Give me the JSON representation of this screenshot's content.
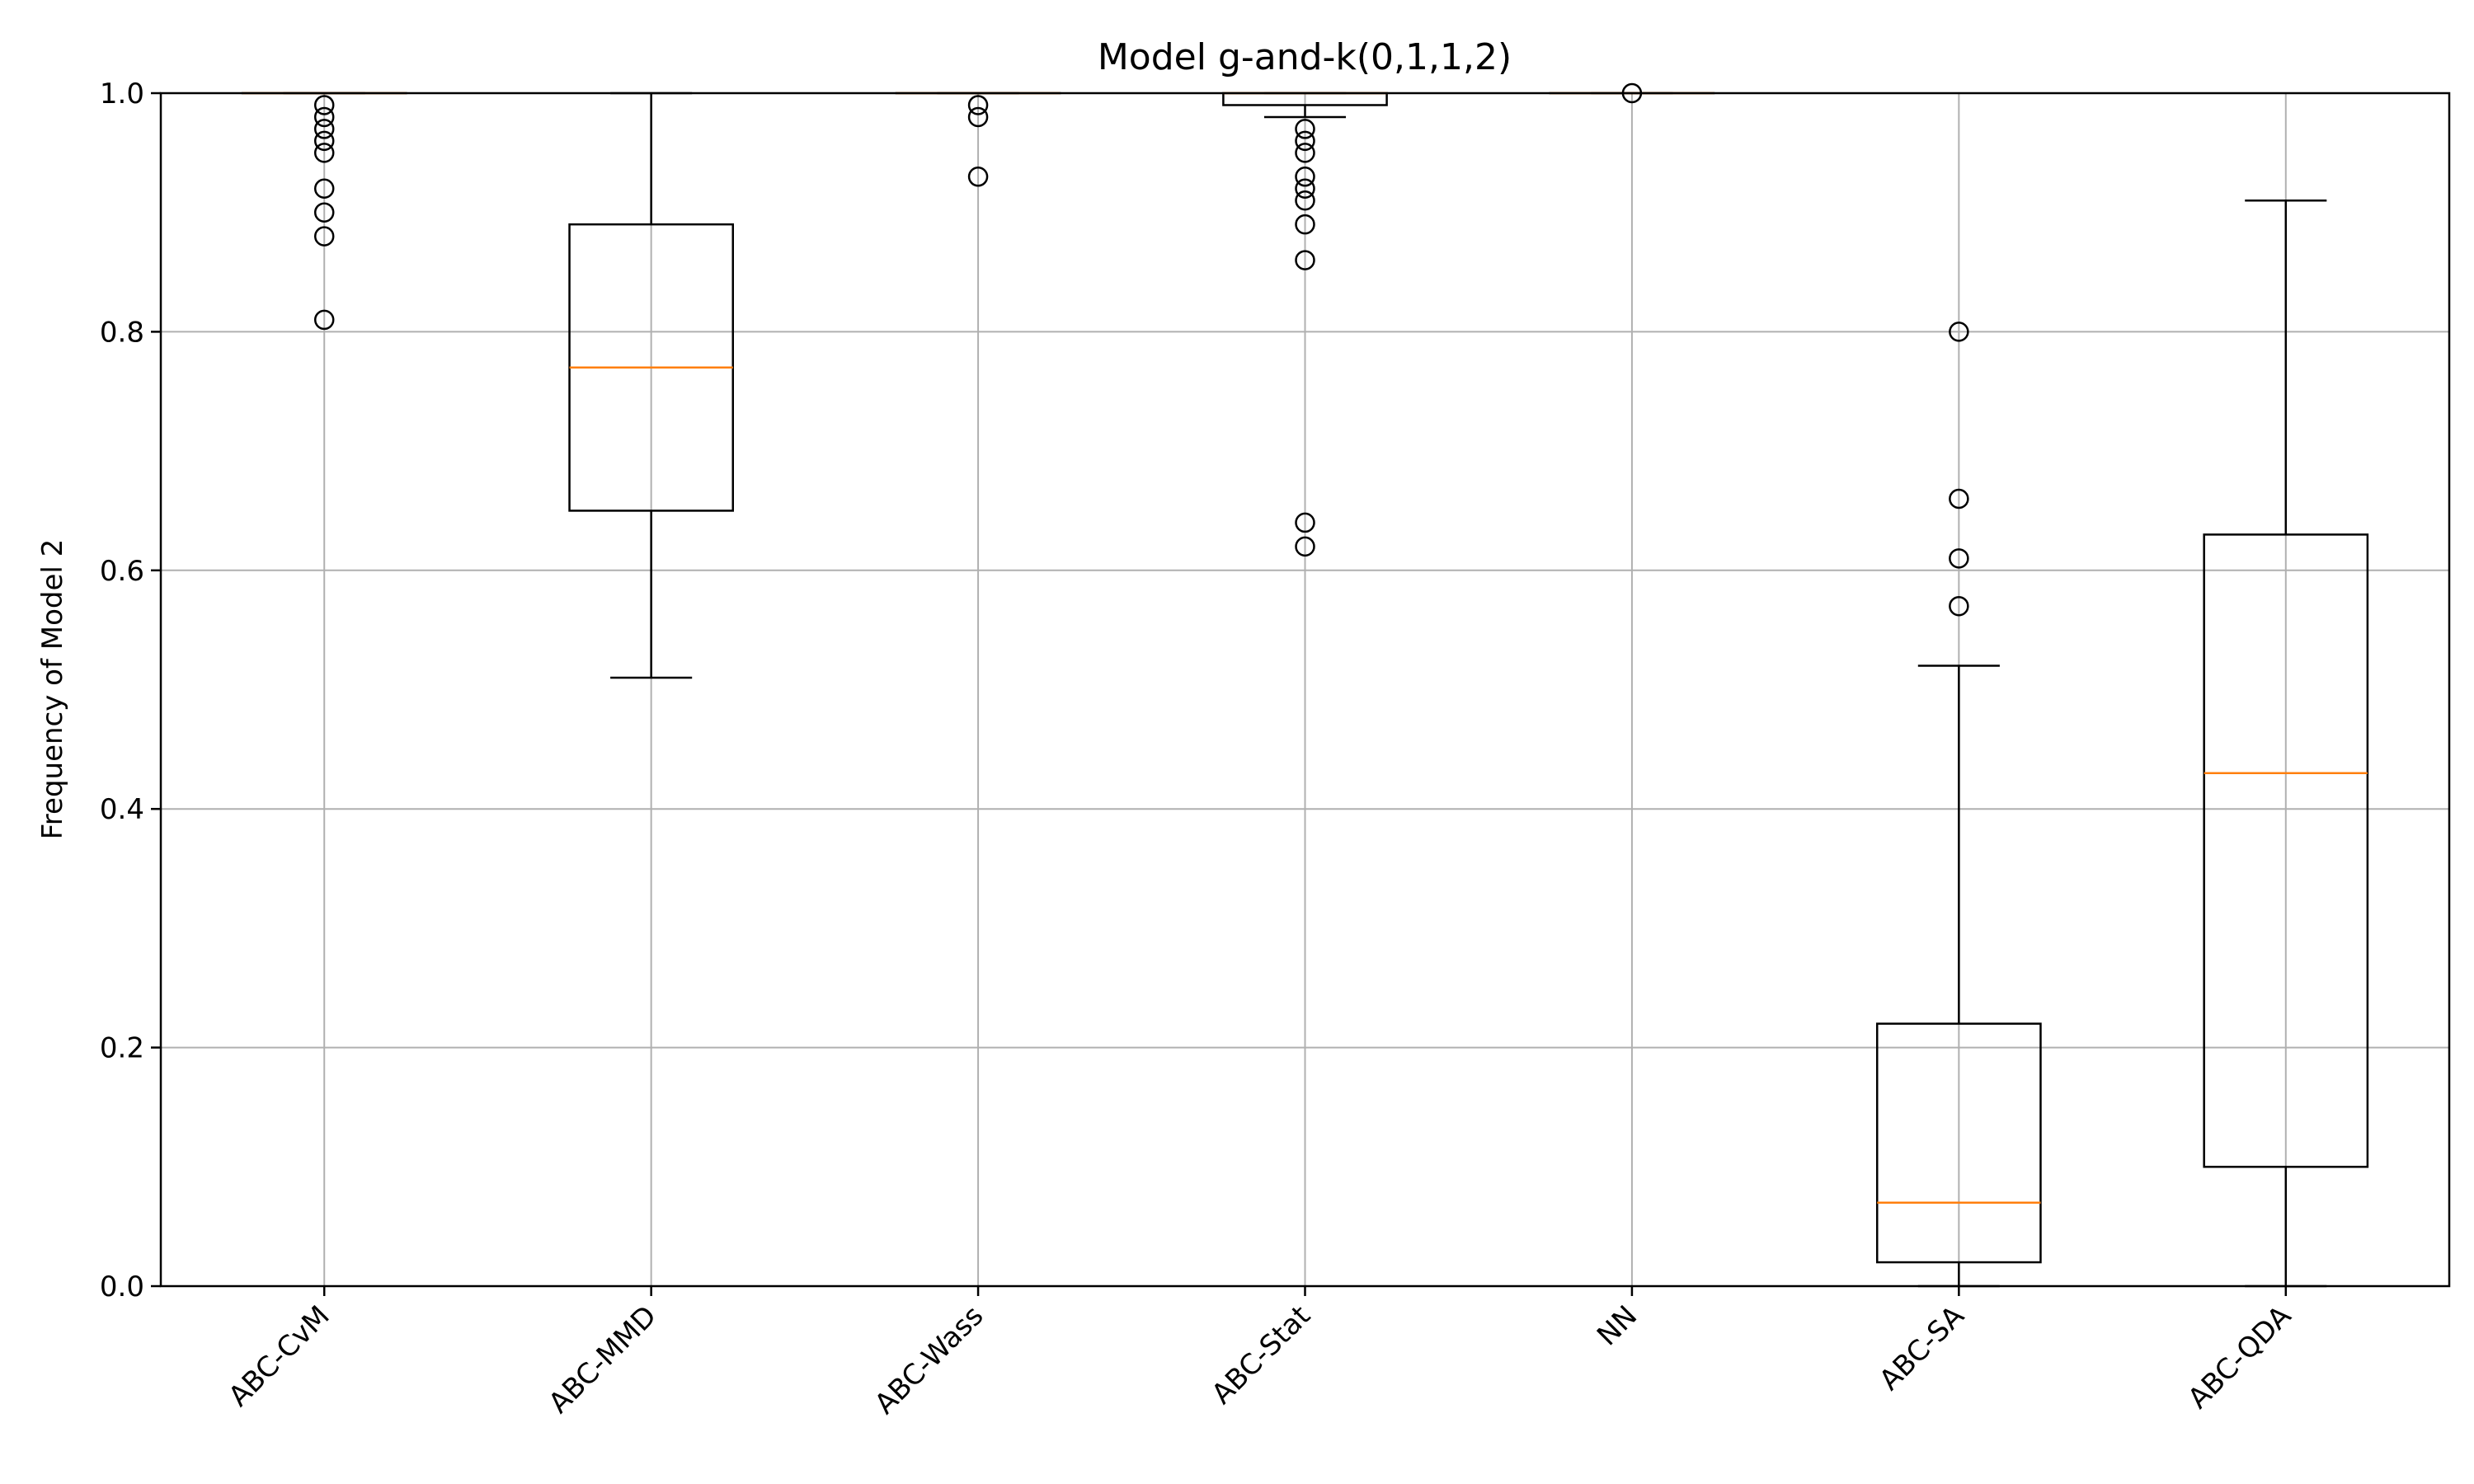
{
  "chart_data": {
    "type": "boxplot",
    "title": "Model g-and-k(0,1,1,2)",
    "xlabel": "",
    "ylabel": "Frequency of Model 2",
    "ylim": [
      0.0,
      1.0
    ],
    "yticks": [
      "0.0",
      "0.2",
      "0.4",
      "0.6",
      "0.8",
      "1.0"
    ],
    "grid": true,
    "categories": [
      "ABC-CvM",
      "ABC-MMD",
      "ABC-Wass",
      "ABC-Stat",
      "NN",
      "ABC-SA",
      "ABC-QDA"
    ],
    "boxes": [
      {
        "whisker_low": 1.0,
        "q1": 1.0,
        "median": 1.0,
        "q3": 1.0,
        "whisker_high": 1.0,
        "fliers": [
          0.99,
          0.98,
          0.97,
          0.96,
          0.95,
          0.92,
          0.9,
          0.88,
          0.81
        ]
      },
      {
        "whisker_low": 0.51,
        "q1": 0.65,
        "median": 0.77,
        "q3": 0.89,
        "whisker_high": 1.0,
        "fliers": []
      },
      {
        "whisker_low": 1.0,
        "q1": 1.0,
        "median": 1.0,
        "q3": 1.0,
        "whisker_high": 1.0,
        "fliers": [
          0.99,
          0.98,
          0.93
        ]
      },
      {
        "whisker_low": 0.98,
        "q1": 0.99,
        "median": 1.0,
        "q3": 1.0,
        "whisker_high": 1.0,
        "fliers": [
          0.97,
          0.96,
          0.95,
          0.93,
          0.92,
          0.91,
          0.89,
          0.86,
          0.64,
          0.62
        ]
      },
      {
        "whisker_low": 1.0,
        "q1": 1.0,
        "median": 1.0,
        "q3": 1.0,
        "whisker_high": 1.0,
        "fliers": [
          1.0
        ]
      },
      {
        "whisker_low": 0.0,
        "q1": 0.02,
        "median": 0.07,
        "q3": 0.22,
        "whisker_high": 0.52,
        "fliers": [
          0.8,
          0.66,
          0.61,
          0.57
        ]
      },
      {
        "whisker_low": 0.0,
        "q1": 0.1,
        "median": 0.43,
        "q3": 0.63,
        "whisker_high": 0.91,
        "fliers": []
      }
    ],
    "colors": {
      "box": "#000000",
      "median": "#ff7f0e",
      "grid": "#b0b0b0",
      "axes": "#000000"
    }
  }
}
